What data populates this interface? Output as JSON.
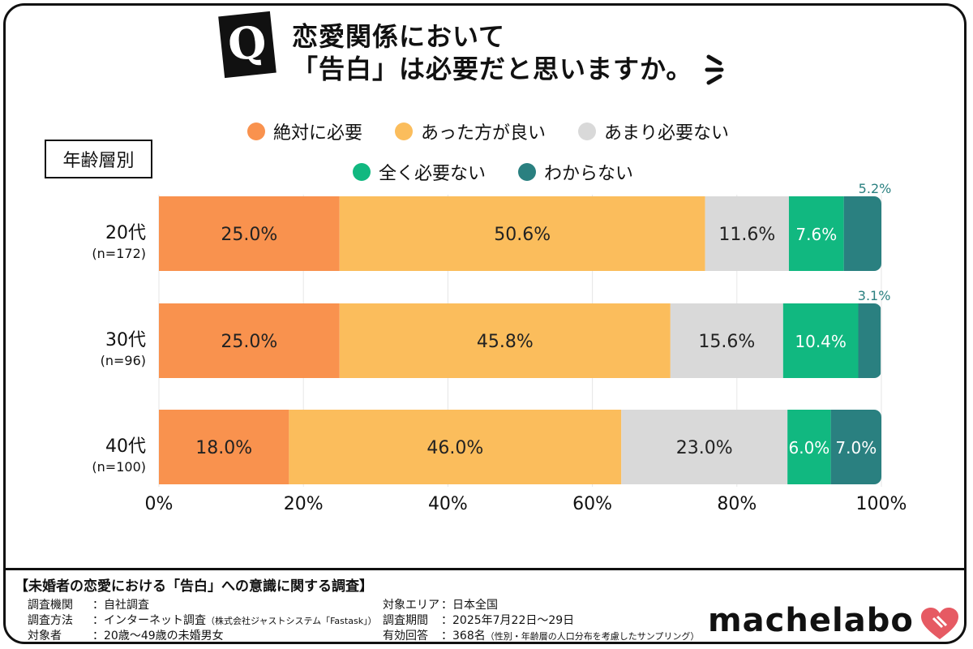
{
  "title": {
    "badge": "Q",
    "line1": "恋愛関係において",
    "line2": "「告白」は必要だと思いますか。"
  },
  "age_label": "年齢層別",
  "chart_data": {
    "type": "bar",
    "orientation": "horizontal",
    "stacked": true,
    "percent": true,
    "categories": [
      "20代",
      "30代",
      "40代"
    ],
    "category_sub": [
      "(n=172)",
      "(n=96)",
      "(n=100)"
    ],
    "series": [
      {
        "name": "絶対に必要",
        "color": "#F9924E",
        "values": [
          25.0,
          25.0,
          18.0
        ]
      },
      {
        "name": "あった方が良い",
        "color": "#FBBD5C",
        "values": [
          50.6,
          45.8,
          46.0
        ]
      },
      {
        "name": "あまり必要ない",
        "color": "#D9D9D9",
        "values": [
          11.6,
          15.6,
          23.0
        ]
      },
      {
        "name": "全く必要ない",
        "color": "#11B880",
        "values": [
          7.6,
          10.4,
          6.0
        ]
      },
      {
        "name": "わからない",
        "color": "#2A8080",
        "values": [
          5.2,
          3.1,
          7.0
        ]
      }
    ],
    "xlim": [
      0,
      100
    ],
    "xticks": [
      "0%",
      "20%",
      "40%",
      "60%",
      "80%",
      "100%"
    ],
    "legend_position": "top",
    "grid": true
  },
  "footer": {
    "title": "【未婚者の恋愛における「告白」への意識に関する調査】",
    "left": [
      {
        "label": "調査機関",
        "value": "：自社調査",
        "note": ""
      },
      {
        "label": "調査方法",
        "value": "：インターネット調査",
        "note": "（株式会社ジャストシステム「Fastask」）"
      },
      {
        "label": "対象者",
        "value": "：20歳～49歳の未婚男女",
        "note": ""
      }
    ],
    "right": [
      {
        "label": "対象エリア",
        "value": "：日本全国",
        "note": ""
      },
      {
        "label": "調査期間",
        "value": "：2025年7月22日～29日",
        "note": ""
      },
      {
        "label": "有効回答",
        "value": "：368名",
        "note": "（性別・年齢層の人口分布を考慮したサンプリング）"
      }
    ]
  },
  "logo": "machelabo"
}
